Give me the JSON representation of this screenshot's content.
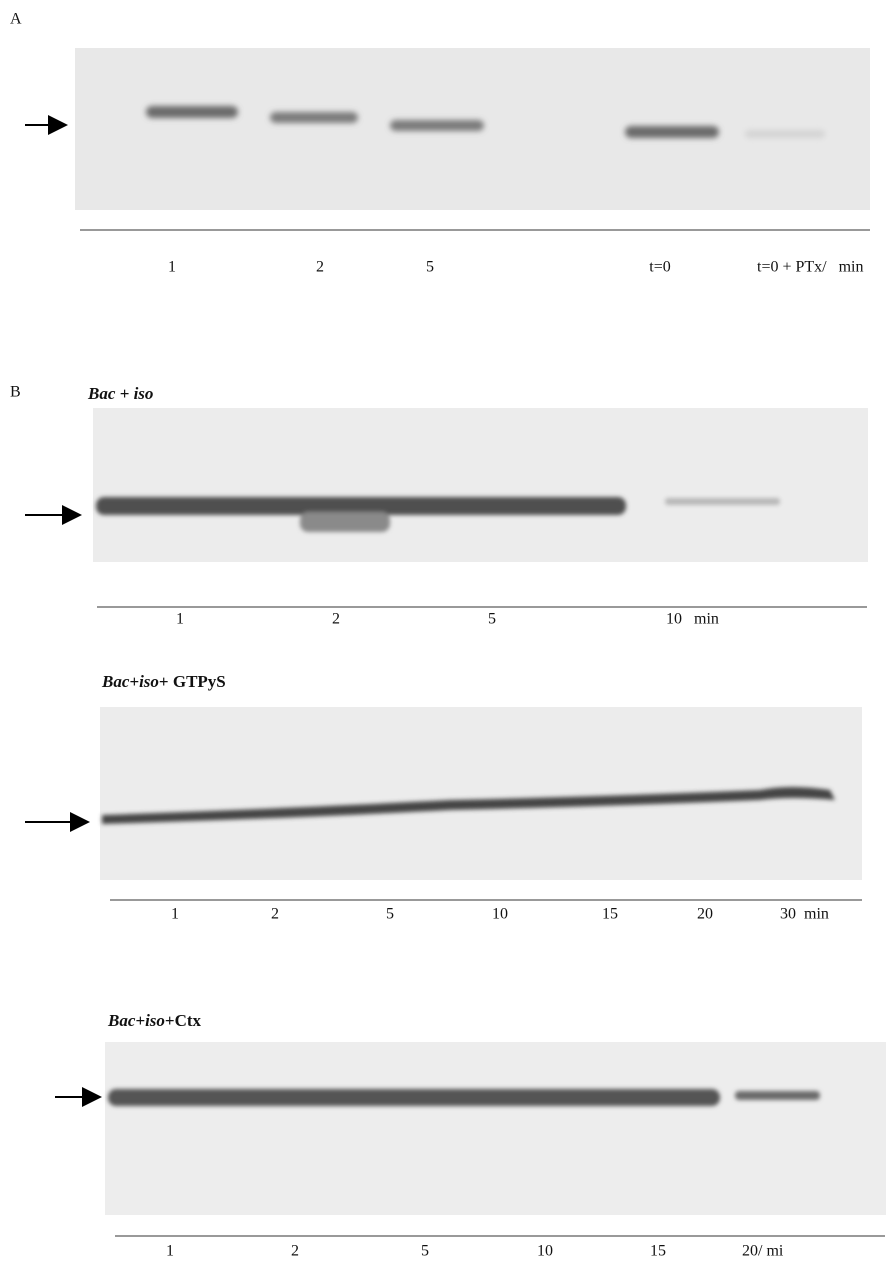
{
  "panel_a": {
    "label": "A",
    "lanes": [
      "1",
      "2",
      "5",
      "t=0",
      "t=0 + PTx/   min"
    ]
  },
  "panel_b": {
    "label": "B",
    "blots": [
      {
        "title": [
          "Bac + iso"
        ],
        "lanes": [
          "1",
          "2",
          "5",
          "10   min"
        ]
      },
      {
        "title": [
          "Bac+iso",
          "+ GTPyS"
        ],
        "lanes": [
          "1",
          "2",
          "5",
          "10",
          "15",
          "20",
          "30  min"
        ]
      },
      {
        "title": [
          "Bac+iso",
          "+Ctx"
        ],
        "lanes": [
          "1",
          "2",
          "5",
          "10",
          "15",
          "20/ mi"
        ]
      }
    ]
  }
}
